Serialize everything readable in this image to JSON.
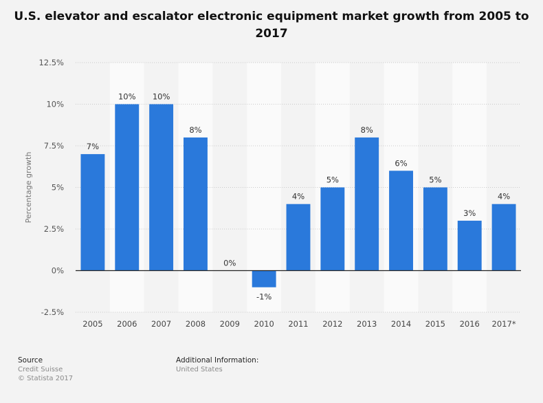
{
  "title": "U.S. elevator and escalator electronic equipment market growth from 2005 to 2017",
  "chart_data": {
    "type": "bar",
    "categories": [
      "2005",
      "2006",
      "2007",
      "2008",
      "2009",
      "2010",
      "2011",
      "2012",
      "2013",
      "2014",
      "2015",
      "2016",
      "2017*"
    ],
    "values": [
      7,
      10,
      10,
      8,
      0,
      -1,
      4,
      5,
      8,
      6,
      5,
      3,
      4
    ],
    "value_labels": [
      "7%",
      "10%",
      "10%",
      "8%",
      "0%",
      "-1%",
      "4%",
      "5%",
      "8%",
      "6%",
      "5%",
      "3%",
      "4%"
    ],
    "ylabel": "Percentage growth",
    "xlabel": "",
    "ylim": [
      -2.5,
      12.5
    ],
    "yticks": [
      12.5,
      10,
      7.5,
      5,
      2.5,
      0,
      -2.5
    ],
    "ytick_labels": [
      "12.5%",
      "10%",
      "7.5%",
      "5%",
      "2.5%",
      "0%",
      "-2.5%"
    ],
    "grid": true,
    "bar_color": "#2a79db"
  },
  "footer": {
    "source_heading": "Source",
    "source_lines": [
      "Credit Suisse",
      "© Statista 2017"
    ],
    "info_heading": "Additional Information:",
    "info_lines": [
      "United States"
    ]
  }
}
